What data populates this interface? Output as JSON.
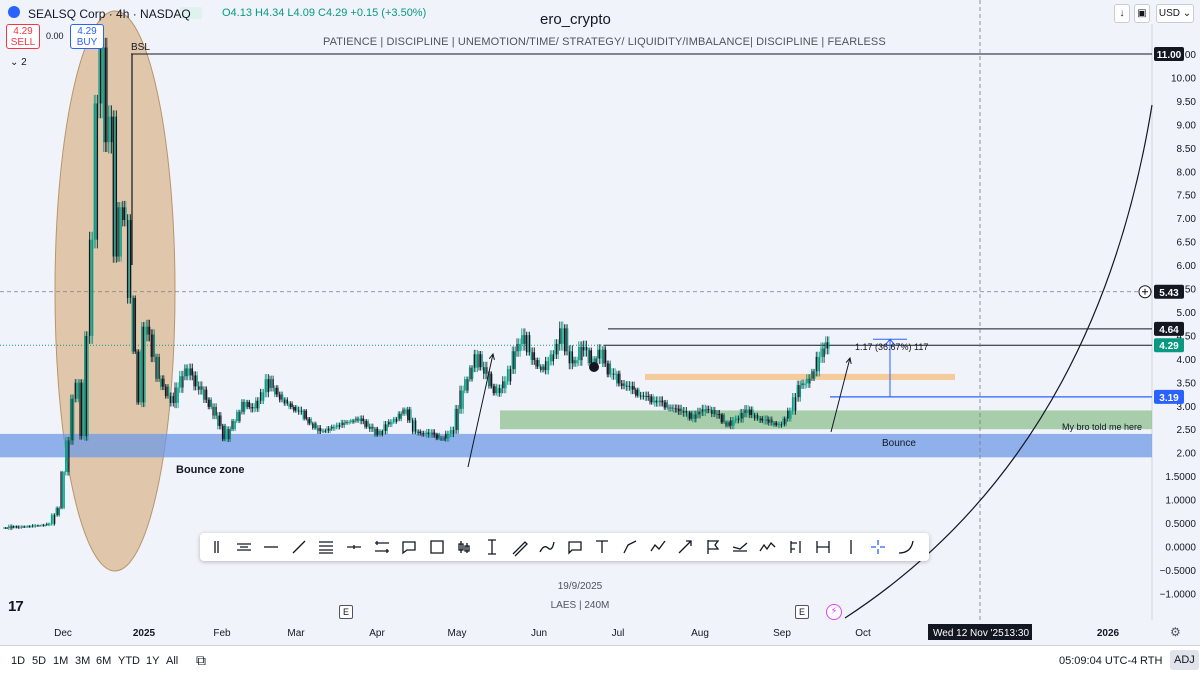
{
  "header": {
    "symbol_title": "SEALSQ Corp · 4h · NASDAQ",
    "ohlc": "O4.13 H4.34 L4.09 C4.29 +0.15 (+3.50%)",
    "sell_price": "4.29",
    "sell_label": "SELL",
    "buy_price": "4.29",
    "buy_label": "BUY",
    "spread": "0.00",
    "indicator_count": "2",
    "currency": "USD"
  },
  "annotations": {
    "author": "ero_crypto",
    "subtitle": "PATIENCE   |   DISCIPLINE   |   UNEMOTION/TIME/ STRATEGY/ LIQUIDITY/IMBALANCE|   DISCIPLINE   |   FEARLESS",
    "bsl": "BSL",
    "bounce_zone": "Bounce zone",
    "bounce": "Bounce",
    "bro_note": "My bro told me here",
    "measure": "1.17 (36.67%) 117",
    "date_label": "19/9/2025",
    "laes_label": "LAES | 240M"
  },
  "colors": {
    "up": "#089981",
    "down": "#131722",
    "ellipse_fill": "#d9b48a",
    "bounce_zone_fill": "#6f9ae6",
    "bounce_fill": "#8fc08f",
    "orange_band": "#f4c38a",
    "blue_line": "#2962ff",
    "price_tag": "#089981"
  },
  "chart_data": {
    "type": "candlestick",
    "title": "SEALSQ Corp · 4h · NASDAQ",
    "yaxis": {
      "scale": "log",
      "ticks": [
        "11.00",
        "10.00",
        "9.50",
        "9.00",
        "8.50",
        "8.00",
        "7.50",
        "7.00",
        "6.50",
        "6.00",
        "5.50",
        "5.00",
        "4.50",
        "4.00",
        "3.50",
        "3.00",
        "2.50",
        "2.00",
        "1.5000",
        "1.0000",
        "0.5000",
        "0.0000",
        "−0.5000",
        "−1.0000"
      ],
      "tick_values": [
        11,
        10,
        9.5,
        9,
        8.5,
        8,
        7.5,
        7,
        6.5,
        6,
        5.5,
        5,
        4.5,
        4,
        3.5,
        3,
        2.5,
        2,
        1.5,
        1,
        0.5,
        0,
        -0.5,
        -1
      ]
    },
    "xaxis": {
      "ticks": [
        "Dec",
        "2025",
        "Feb",
        "Mar",
        "Apr",
        "May",
        "Jun",
        "Jul",
        "Aug",
        "Sep",
        "Oct",
        "2026"
      ],
      "cursor_label": "Wed 12 Nov '25",
      "cursor_time": "13:30"
    },
    "price_tags": [
      {
        "label": "11.00",
        "value": 11.0,
        "style": "dark"
      },
      {
        "label": "5.43",
        "value": 5.43,
        "style": "dark"
      },
      {
        "label": "4.64",
        "value": 4.64,
        "style": "dark"
      },
      {
        "label": "4.29",
        "value": 4.29,
        "style": "green"
      },
      {
        "label": "3.19",
        "value": 3.19,
        "style": "blue"
      }
    ],
    "levels": {
      "bsl": 11.0,
      "high": 4.64,
      "current": 4.29,
      "note_line": 3.19,
      "crosshair": 5.43
    },
    "zones": {
      "bounce_zone": [
        1.9,
        2.4
      ],
      "bounce": [
        2.5,
        2.9
      ],
      "orange_band": [
        3.55,
        3.68
      ]
    },
    "path": [
      [
        0,
        0.4
      ],
      [
        6,
        0.44
      ],
      [
        9,
        0.48
      ],
      [
        11,
        0.8
      ],
      [
        12,
        1.6
      ],
      [
        13,
        2.2
      ],
      [
        14,
        3.1
      ],
      [
        15,
        3.5
      ],
      [
        16,
        2.3
      ],
      [
        17,
        4.5
      ],
      [
        18,
        6.5
      ],
      [
        19,
        9.5
      ],
      [
        20,
        11.0
      ],
      [
        21,
        8.6
      ],
      [
        22,
        9.1
      ],
      [
        23,
        6.2
      ],
      [
        24,
        7.3
      ],
      [
        25,
        7.0
      ],
      [
        26,
        5.3
      ],
      [
        27,
        4.2
      ],
      [
        28,
        3.1
      ],
      [
        29,
        4.7
      ],
      [
        30,
        4.4
      ],
      [
        32,
        3.6
      ],
      [
        35,
        3.05
      ],
      [
        38,
        3.8
      ],
      [
        40,
        3.4
      ],
      [
        43,
        3.0
      ],
      [
        46,
        2.3
      ],
      [
        50,
        3.1
      ],
      [
        52,
        2.9
      ],
      [
        55,
        3.5
      ],
      [
        58,
        3.15
      ],
      [
        62,
        2.85
      ],
      [
        66,
        2.45
      ],
      [
        70,
        2.6
      ],
      [
        74,
        2.75
      ],
      [
        78,
        2.4
      ],
      [
        82,
        2.75
      ],
      [
        84,
        2.95
      ],
      [
        86,
        2.45
      ],
      [
        88,
        2.4
      ],
      [
        92,
        2.3
      ],
      [
        94,
        2.45
      ],
      [
        95,
        2.9
      ],
      [
        97,
        3.6
      ],
      [
        99,
        4.1
      ],
      [
        101,
        3.6
      ],
      [
        103,
        3.3
      ],
      [
        105,
        3.45
      ],
      [
        107,
        4.15
      ],
      [
        109,
        4.4
      ],
      [
        111,
        3.95
      ],
      [
        113,
        3.8
      ],
      [
        115,
        4.1
      ],
      [
        117,
        4.55
      ],
      [
        119,
        3.8
      ],
      [
        121,
        4.2
      ],
      [
        123,
        3.95
      ],
      [
        125,
        4.15
      ],
      [
        127,
        3.7
      ],
      [
        129,
        3.5
      ],
      [
        132,
        3.3
      ],
      [
        136,
        3.1
      ],
      [
        140,
        2.95
      ],
      [
        144,
        2.75
      ],
      [
        148,
        2.9
      ],
      [
        152,
        2.6
      ],
      [
        156,
        2.85
      ],
      [
        160,
        2.65
      ],
      [
        163,
        2.6
      ],
      [
        165,
        2.9
      ],
      [
        167,
        3.4
      ],
      [
        169,
        3.55
      ],
      [
        171,
        4.0
      ],
      [
        173,
        4.29
      ]
    ]
  },
  "toolbar": {
    "tools": [
      "grip-icon",
      "trend-settings-icon",
      "horizontal-line-icon",
      "trend-line-icon",
      "fib-retracement-icon",
      "horizontal-ray-icon",
      "parallel-channel-icon",
      "callout-icon",
      "rectangle-icon",
      "candle-icon",
      "price-range-icon",
      "brush-icon",
      "highlighter-icon",
      "comment-icon",
      "text-icon",
      "path-icon",
      "polyline-icon",
      "arrow-icon",
      "flag-icon",
      "regression-icon",
      "pattern-icon",
      "long-position-icon",
      "date-range-icon",
      "vertical-line-icon",
      "crosshair-icon",
      "curve-icon"
    ]
  },
  "bottombar": {
    "ranges": [
      "1D",
      "5D",
      "1M",
      "3M",
      "6M",
      "YTD",
      "1Y",
      "All"
    ],
    "clock": "05:09:04 UTC-4",
    "session": "RTH",
    "adj": "ADJ"
  },
  "events": {
    "e1": "E",
    "e2": "E"
  }
}
